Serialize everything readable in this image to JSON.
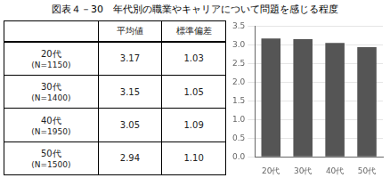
{
  "chart_data": [
    {
      "type": "table",
      "categories": [
        "20代",
        "30代",
        "40代",
        "50代"
      ],
      "category_notes": [
        "(N=1150)",
        "(N=1400)",
        "(N=1950)",
        "(N=1500)"
      ],
      "series": [
        {
          "name": "平均値",
          "values": [
            3.17,
            3.15,
            3.05,
            2.94
          ]
        },
        {
          "name": "標準偏差",
          "values": [
            1.03,
            1.05,
            1.09,
            1.1
          ],
          "value_labels": [
            "1.03",
            "1.05",
            "1.09",
            "1.10"
          ]
        }
      ]
    },
    {
      "type": "bar",
      "title": "図表４－30　年代別の職業やキャリアについて問題を感じる程度",
      "categories": [
        "20代",
        "30代",
        "40代",
        "50代"
      ],
      "values": [
        3.17,
        3.15,
        3.05,
        2.94
      ],
      "color": "#555555",
      "ylim": [
        0.0,
        3.5
      ],
      "yticks": [
        {
          "value": 0,
          "label": "0.0"
        },
        0.5,
        {
          "value": 1,
          "label": "1.0"
        },
        1.5,
        {
          "value": 2,
          "label": "2.0"
        },
        2.5,
        {
          "value": 3,
          "label": "3.0"
        },
        3.5
      ],
      "grid": true
    }
  ]
}
